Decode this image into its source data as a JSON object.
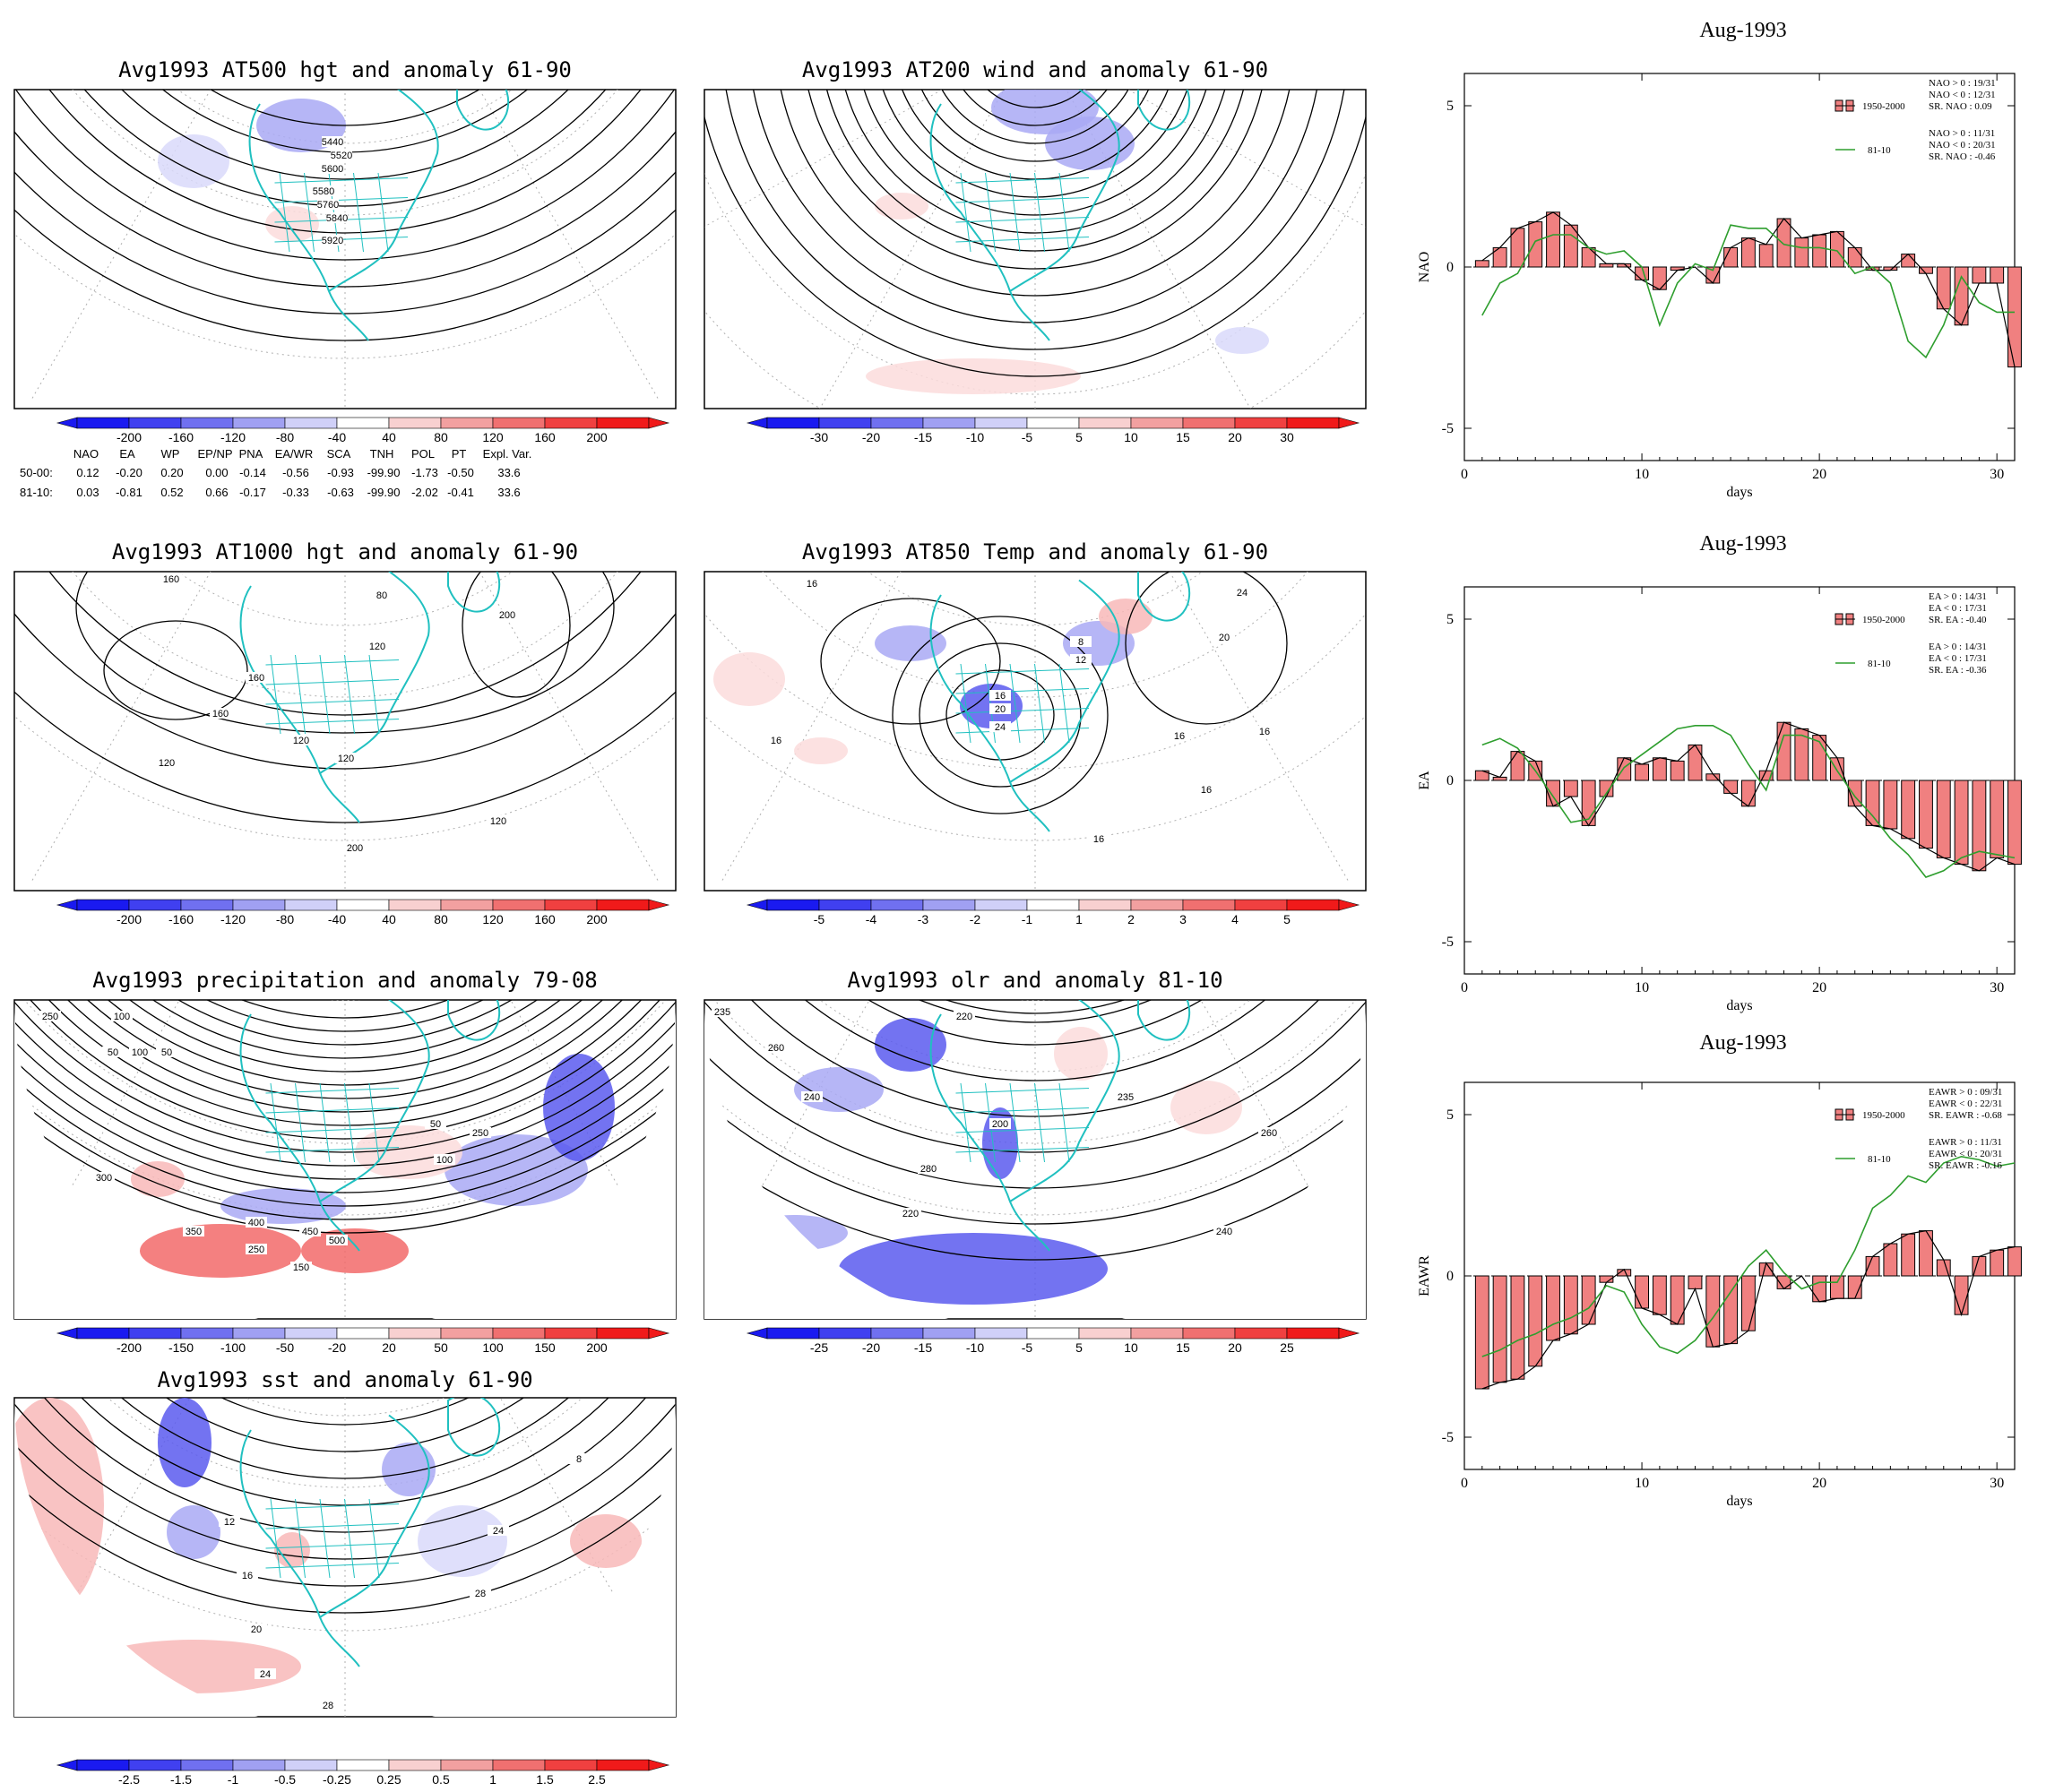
{
  "maps": [
    {
      "title": "Avg1993 AT500 hgt and anomaly 61-90",
      "colorbar": [
        "-200",
        "-160",
        "-120",
        "-80",
        "-40",
        "40",
        "80",
        "120",
        "160",
        "200"
      ],
      "contour_labels": [
        "5440",
        "5520",
        "5600",
        "5580",
        "5760",
        "5840",
        "5920"
      ]
    },
    {
      "title": "Avg1993 AT200 wind and anomaly 61-90",
      "colorbar": [
        "-30",
        "-20",
        "-15",
        "-10",
        "-5",
        "5",
        "10",
        "15",
        "20",
        "30"
      ],
      "contour_labels": []
    },
    {
      "title": "Avg1993 AT1000 hgt and anomaly 61-90",
      "colorbar": [
        "-200",
        "-160",
        "-120",
        "-80",
        "-40",
        "40",
        "80",
        "120",
        "160",
        "200"
      ],
      "contour_labels": [
        "160",
        "80",
        "120",
        "200",
        "160",
        "120",
        "160",
        "120",
        "120",
        "120",
        "200"
      ]
    },
    {
      "title": "Avg1993 AT850 Temp and anomaly 61-90",
      "colorbar": [
        "-5",
        "-4",
        "-3",
        "-2",
        "-1",
        "1",
        "2",
        "3",
        "4",
        "5"
      ],
      "contour_labels": [
        "16",
        "24",
        "20",
        "8",
        "12",
        "16",
        "20",
        "24",
        "16",
        "16",
        "16",
        "16",
        "16"
      ]
    },
    {
      "title": "Avg1993 precipitation and anomaly 79-08",
      "colorbar": [
        "-200",
        "-150",
        "-100",
        "-50",
        "-20",
        "20",
        "50",
        "100",
        "150",
        "200"
      ],
      "contour_labels": [
        "250",
        "100",
        "50",
        "100",
        "50",
        "300",
        "350",
        "400",
        "450",
        "500",
        "250",
        "150",
        "100",
        "50",
        "250"
      ]
    },
    {
      "title": "Avg1993 olr and anomaly 81-10",
      "colorbar": [
        "-25",
        "-20",
        "-15",
        "-10",
        "-5",
        "5",
        "10",
        "15",
        "20",
        "25"
      ],
      "contour_labels": [
        "235",
        "260",
        "220",
        "240",
        "200",
        "280",
        "235",
        "260",
        "220",
        "240"
      ]
    },
    {
      "title": "Avg1993 sst and anomaly 61-90",
      "colorbar": [
        "-2.5",
        "-1.5",
        "-1",
        "-0.5",
        "-0.25",
        "0.25",
        "0.5",
        "1",
        "1.5",
        "2.5"
      ],
      "contour_labels": [
        "12",
        "16",
        "20",
        "24",
        "28",
        "24",
        "28",
        "8"
      ]
    }
  ],
  "index_table": {
    "header": [
      "NAO",
      "EA",
      "WP",
      "EP/NP",
      "PNA",
      "EA/WR",
      "SCA",
      "TNH",
      "POL",
      "PT",
      "Expl. Var."
    ],
    "rows": [
      {
        "label": "50-00:",
        "values": [
          "0.12",
          "-0.20",
          "0.20",
          "0.00",
          "-0.14",
          "-0.56",
          "-0.93",
          "-99.90",
          "-1.73",
          "-0.50",
          "33.6"
        ]
      },
      {
        "label": "81-10:",
        "values": [
          "0.03",
          "-0.81",
          "0.52",
          "0.66",
          "-0.17",
          "-0.33",
          "-0.63",
          "-99.90",
          "-2.02",
          "-0.41",
          "33.6"
        ]
      }
    ]
  },
  "colors": {
    "bars": "#f08080",
    "line81": "#2e9e2e",
    "coast": "#20c0c0",
    "contour": "#000000"
  },
  "chart_data": [
    {
      "type": "bar",
      "title": "Aug-1993",
      "xlabel": "days",
      "ylabel": "NAO",
      "xlim": [
        0,
        31
      ],
      "ylim": [
        -6,
        6
      ],
      "xticks": [
        0,
        10,
        20,
        30
      ],
      "yticks": [
        5,
        0,
        -5
      ],
      "legend": {
        "bar_name": "1950-2000",
        "line_name": "81-10",
        "stats_bar": [
          "NAO > 0 : 19/31",
          "NAO < 0 : 12/31",
          "SR. NAO : 0.09"
        ],
        "stats_line": [
          "NAO > 0 : 11/31",
          "NAO < 0 : 20/31",
          "SR. NAO : -0.46"
        ]
      },
      "series": [
        {
          "name": "1950-2000",
          "values": [
            0.2,
            0.6,
            1.2,
            1.4,
            1.7,
            1.3,
            0.6,
            0.1,
            0.1,
            -0.4,
            -0.7,
            -0.1,
            0,
            -0.5,
            0.6,
            0.9,
            0.7,
            1.5,
            0.9,
            1.0,
            1.1,
            0.6,
            -0.1,
            -0.1,
            0.4,
            -0.2,
            -1.3,
            -1.8,
            -0.5,
            -0.5,
            -3.1
          ]
        },
        {
          "name": "81-10",
          "values": [
            -1.5,
            -0.5,
            -0.2,
            0.8,
            1.0,
            1.0,
            0.6,
            0.4,
            0.5,
            0.0,
            -1.8,
            -0.5,
            0.1,
            -0.1,
            1.3,
            1.2,
            1.2,
            0.7,
            0.6,
            0.6,
            0.5,
            -0.2,
            0,
            -0.5,
            -2.3,
            -2.8,
            -1.8,
            -0.3,
            -1.1,
            -1.4,
            -1.4
          ]
        }
      ]
    },
    {
      "type": "bar",
      "title": "Aug-1993",
      "xlabel": "days",
      "ylabel": "EA",
      "xlim": [
        0,
        31
      ],
      "ylim": [
        -6,
        6
      ],
      "xticks": [
        0,
        10,
        20,
        30
      ],
      "yticks": [
        5,
        0,
        -5
      ],
      "legend": {
        "bar_name": "1950-2000",
        "line_name": "81-10",
        "stats_bar": [
          "EA > 0 : 14/31",
          "EA < 0 : 17/31",
          "SR. EA : -0.40"
        ],
        "stats_line": [
          "EA > 0 : 14/31",
          "EA < 0 : 17/31",
          "SR. EA : -0.36"
        ]
      },
      "series": [
        {
          "name": "1950-2000",
          "values": [
            0.3,
            0.1,
            0.9,
            0.6,
            -0.8,
            -0.5,
            -1.4,
            -0.5,
            0.7,
            0.5,
            0.7,
            0.6,
            1.1,
            0.2,
            -0.4,
            -0.8,
            0.3,
            1.8,
            1.6,
            1.4,
            0.7,
            -0.8,
            -1.4,
            -1.5,
            -1.8,
            -2.1,
            -2.4,
            -2.6,
            -2.8,
            -2.4,
            -2.6
          ]
        },
        {
          "name": "81-10",
          "values": [
            1.1,
            1.3,
            1.0,
            0.3,
            -0.5,
            -1.3,
            -1.2,
            -0.4,
            0.4,
            0.8,
            1.2,
            1.6,
            1.7,
            1.7,
            1.4,
            0.5,
            -0.3,
            1.4,
            1.4,
            1.2,
            0.3,
            -0.5,
            -1.1,
            -1.8,
            -2.3,
            -3.0,
            -2.8,
            -2.4,
            -2.2,
            -2.3,
            -2.4
          ]
        }
      ]
    },
    {
      "type": "bar",
      "title": "Aug-1993",
      "xlabel": "days",
      "ylabel": "EAWR",
      "xlim": [
        0,
        31
      ],
      "ylim": [
        -6,
        6
      ],
      "xticks": [
        0,
        10,
        20,
        30
      ],
      "yticks": [
        5,
        0,
        -5
      ],
      "legend": {
        "bar_name": "1950-2000",
        "line_name": "81-10",
        "stats_bar": [
          "EAWR > 0 : 09/31",
          "EAWR < 0 : 22/31",
          "SR. EAWR : -0.68"
        ],
        "stats_line": [
          "EAWR > 0 : 11/31",
          "EAWR < 0 : 20/31",
          "SR. EAWR : -0.16"
        ]
      },
      "series": [
        {
          "name": "1950-2000",
          "values": [
            -3.5,
            -3.3,
            -3.2,
            -2.8,
            -2.0,
            -1.8,
            -1.5,
            -0.2,
            0.2,
            -1.0,
            -1.2,
            -1.5,
            -0.4,
            -2.2,
            -2.1,
            -1.7,
            0.4,
            -0.4,
            0,
            -0.8,
            -0.7,
            -0.7,
            0.6,
            1.0,
            1.3,
            1.4,
            0.5,
            -1.2,
            0.6,
            0.8,
            0.9
          ]
        },
        {
          "name": "81-10",
          "values": [
            -2.5,
            -2.3,
            -2.0,
            -1.8,
            -1.5,
            -1.3,
            -1.0,
            -0.3,
            -0.5,
            -1.5,
            -2.2,
            -2.4,
            -2.0,
            -1.3,
            -0.5,
            0.3,
            0.8,
            0.1,
            -0.4,
            -0.2,
            -0.2,
            0.8,
            2.1,
            2.5,
            3.1,
            2.9,
            3.5,
            3.7,
            3.6,
            3.4,
            3.5
          ]
        }
      ]
    }
  ]
}
